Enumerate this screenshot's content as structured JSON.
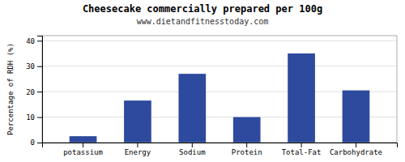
{
  "chart_data": {
    "type": "bar",
    "title": "Cheesecake commercially prepared per 100g",
    "subtitle": "www.dietandfitnesstoday.com",
    "ylabel": "Percentage of RDH (%)",
    "categories": [
      "potassium",
      "Energy",
      "Sodium",
      "Protein",
      "Total-Fat",
      "Carbohydrate"
    ],
    "values": [
      2.5,
      16.5,
      27.0,
      10.0,
      35.0,
      20.5
    ],
    "color": "#2e4a9e",
    "ylim": [
      0,
      42
    ],
    "yticks": [
      0,
      10,
      20,
      30,
      40
    ],
    "grid": true
  }
}
